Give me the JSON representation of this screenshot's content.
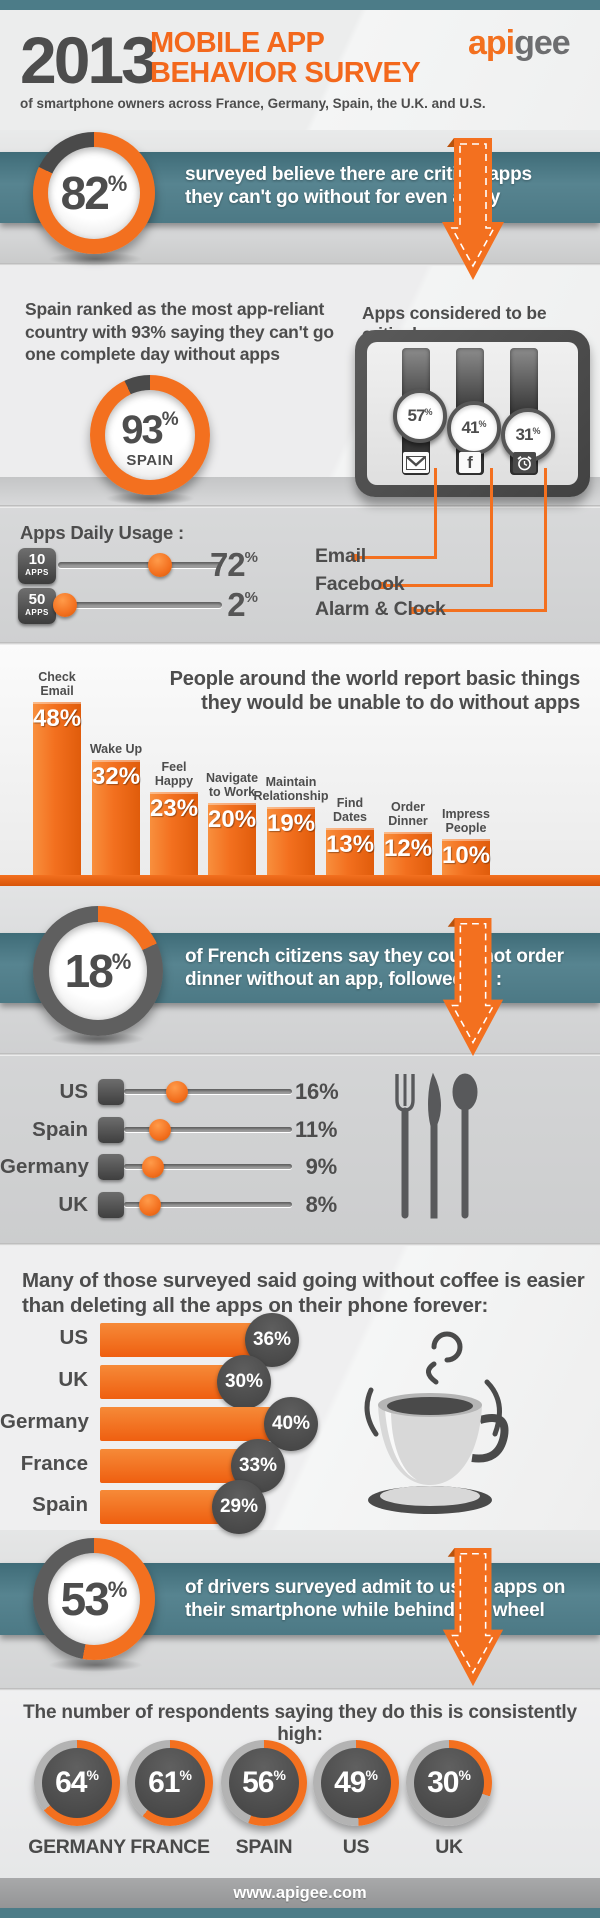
{
  "page": {
    "teal": "#4e7b87",
    "orange": "#f3701f",
    "dark_gray": "#4d4d4d"
  },
  "header": {
    "year": "2013",
    "title_line1": "MOBILE APP",
    "title_line2": "BEHAVIOR SURVEY",
    "subtitle": "of smartphone owners across France, Germany, Spain, the U.K. and U.S.",
    "logo_api": "api",
    "logo_gee": "gee"
  },
  "band82": {
    "num": "82",
    "pct": "%",
    "value": 82,
    "text_line1": "surveyed believe there are critical apps",
    "text_line2": "they can't go without for even a day"
  },
  "spain": {
    "heading_line1": "Spain ranked as the most app-reliant",
    "heading_line2": "country with 93% saying they can't go",
    "heading_line3": "one complete day without apps",
    "num": "93",
    "pct": "%",
    "value": 93,
    "country": "SPAIN"
  },
  "critical": {
    "heading": "Apps considered to be critical:",
    "items": [
      {
        "label": "Email",
        "num": "57",
        "pct": "%",
        "value": 57,
        "icon": "email-icon"
      },
      {
        "label": "Facebook",
        "num": "41",
        "pct": "%",
        "value": 41,
        "icon": "facebook-icon",
        "glyph": "f"
      },
      {
        "label": "Alarm & Clock",
        "num": "31",
        "pct": "%",
        "value": 31,
        "icon": "alarm-clock-icon"
      }
    ]
  },
  "usage": {
    "heading": "Apps Daily Usage :",
    "rows": [
      {
        "badge_top": "10",
        "badge_bottom": "APPS",
        "num": "72",
        "pct": "%",
        "value": 72
      },
      {
        "badge_top": "50",
        "badge_bottom": "APPS",
        "num": "2",
        "pct": "%",
        "value": 2
      }
    ]
  },
  "unable": {
    "title_line1": "People around the world report basic things",
    "title_line2": "they would be unable to do without apps",
    "bars": [
      {
        "label1": "Check",
        "label2": "Email",
        "pct_label": "48%",
        "value": 48
      },
      {
        "label1": "Wake Up",
        "label2": "",
        "pct_label": "32%",
        "value": 32
      },
      {
        "label1": "Feel",
        "label2": "Happy",
        "pct_label": "23%",
        "value": 23
      },
      {
        "label1": "Navigate",
        "label2": "to Work",
        "pct_label": "20%",
        "value": 20
      },
      {
        "label1": "Maintain",
        "label2": "Relationship",
        "pct_label": "19%",
        "value": 19
      },
      {
        "label1": "Find",
        "label2": "Dates",
        "pct_label": "13%",
        "value": 13
      },
      {
        "label1": "Order",
        "label2": "Dinner",
        "pct_label": "12%",
        "value": 12
      },
      {
        "label1": "Impress",
        "label2": "People",
        "pct_label": "10%",
        "value": 10
      }
    ]
  },
  "band18": {
    "num": "18",
    "pct": "%",
    "value": 18,
    "text_line1": "of French citizens say they could not order",
    "text_line2": "dinner without an app, followed by :"
  },
  "dinner": {
    "rows": [
      {
        "label": "US",
        "pct_label": "16%",
        "value": 16
      },
      {
        "label": "Spain",
        "pct_label": "11%",
        "value": 11
      },
      {
        "label": "Germany",
        "pct_label": "9%",
        "value": 9
      },
      {
        "label": "UK",
        "pct_label": "8%",
        "value": 8
      }
    ]
  },
  "coffee": {
    "title_line1": "Many of those surveyed said going without coffee is easier",
    "title_line2": "than deleting all the apps on their phone forever:",
    "rows": [
      {
        "label": "US",
        "pct_label": "36%",
        "value": 36
      },
      {
        "label": "UK",
        "pct_label": "30%",
        "value": 30
      },
      {
        "label": "Germany",
        "pct_label": "40%",
        "value": 40
      },
      {
        "label": "France",
        "pct_label": "33%",
        "value": 33
      },
      {
        "label": "Spain",
        "pct_label": "29%",
        "value": 29
      }
    ]
  },
  "band53": {
    "num": "53",
    "pct": "%",
    "value": 53,
    "text_line1": "of drivers surveyed admit to using apps on",
    "text_line2": "their smartphone while behind the wheel"
  },
  "driving": {
    "heading": "The number of respondents saying they do this is consistently high:",
    "gauges": [
      {
        "country": "GERMANY",
        "num": "64",
        "pct": "%",
        "value": 64
      },
      {
        "country": "FRANCE",
        "num": "61",
        "pct": "%",
        "value": 61
      },
      {
        "country": "SPAIN",
        "num": "56",
        "pct": "%",
        "value": 56
      },
      {
        "country": "US",
        "num": "49",
        "pct": "%",
        "value": 49
      },
      {
        "country": "UK",
        "num": "30",
        "pct": "%",
        "value": 30
      }
    ]
  },
  "footer": {
    "url": "www.apigee.com"
  },
  "chart_data": [
    {
      "type": "pie",
      "title": "surveyed believe there are critical apps they can't go without for even a day",
      "values": [
        82
      ],
      "unit": "%"
    },
    {
      "type": "pie",
      "title": "Spain ranked as the most app-reliant country with 93% saying they can't go one complete day without apps",
      "categories": [
        "SPAIN"
      ],
      "values": [
        93
      ],
      "unit": "%"
    },
    {
      "type": "bar",
      "title": "Apps considered to be critical:",
      "categories": [
        "Email",
        "Facebook",
        "Alarm & Clock"
      ],
      "values": [
        57,
        41,
        31
      ],
      "unit": "%",
      "style": "vertical-sliders"
    },
    {
      "type": "bar",
      "title": "Apps Daily Usage :",
      "categories": [
        "10 APPS",
        "50 APPS"
      ],
      "values": [
        72,
        2
      ],
      "unit": "%",
      "style": "sliders"
    },
    {
      "type": "bar",
      "title": "People around the world report basic things they would be unable to do without apps",
      "categories": [
        "Check Email",
        "Wake Up",
        "Feel Happy",
        "Navigate to Work",
        "Maintain Relationship",
        "Find Dates",
        "Order Dinner",
        "Impress People"
      ],
      "values": [
        48,
        32,
        23,
        20,
        19,
        13,
        12,
        10
      ],
      "unit": "%",
      "ylim": [
        0,
        50
      ]
    },
    {
      "type": "pie",
      "title": "of French citizens say they could not order dinner without an app, followed by :",
      "categories": [
        "France"
      ],
      "values": [
        18
      ],
      "unit": "%"
    },
    {
      "type": "bar",
      "title": "could not order dinner without an app",
      "categories": [
        "US",
        "Spain",
        "Germany",
        "UK"
      ],
      "values": [
        16,
        11,
        9,
        8
      ],
      "unit": "%",
      "style": "sliders"
    },
    {
      "type": "bar",
      "title": "Many of those surveyed said going without coffee is easier than deleting all the apps on their phone forever:",
      "categories": [
        "US",
        "UK",
        "Germany",
        "France",
        "Spain"
      ],
      "values": [
        36,
        30,
        40,
        33,
        29
      ],
      "unit": "%",
      "orientation": "horizontal"
    },
    {
      "type": "pie",
      "title": "of drivers surveyed admit to using apps on their smartphone while behind the wheel",
      "values": [
        53
      ],
      "unit": "%"
    },
    {
      "type": "pie",
      "title": "The number of respondents saying they do this is consistently high:",
      "categories": [
        "GERMANY",
        "FRANCE",
        "SPAIN",
        "US",
        "UK"
      ],
      "values": [
        64,
        61,
        56,
        49,
        30
      ],
      "unit": "%"
    }
  ]
}
